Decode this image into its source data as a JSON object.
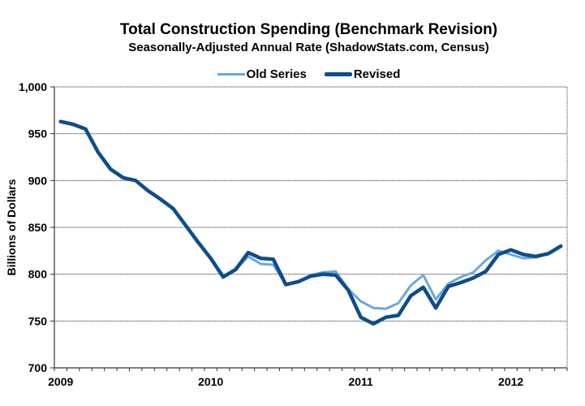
{
  "chart_data": {
    "type": "line",
    "title": "Total Construction Spending (Benchmark Revision)",
    "subtitle": "Seasonally-Adjusted Annual Rate (ShadowStats.com, Census)",
    "xlabel": "",
    "ylabel": "Billions of Dollars",
    "ylim": [
      700,
      1000
    ],
    "yticks": [
      700,
      750,
      800,
      850,
      900,
      950,
      1000
    ],
    "ytick_labels": [
      "700",
      "750",
      "800",
      "850",
      "900",
      "950",
      "1,000"
    ],
    "x_start": "2009-01",
    "x_months": 41,
    "xtick_labels": [
      {
        "label": "2009",
        "month_index": 0
      },
      {
        "label": "2010",
        "month_index": 12
      },
      {
        "label": "2011",
        "month_index": 24
      },
      {
        "label": "2012",
        "month_index": 36
      }
    ],
    "grid": "horizontal",
    "legend_position": "top-center",
    "series": [
      {
        "name": "Old Series",
        "color": "#6aa8e0",
        "values": [
          963,
          960,
          955,
          930,
          912,
          903,
          900,
          889,
          880,
          870,
          852,
          834,
          817,
          797,
          805,
          819,
          811,
          810,
          789,
          792,
          799,
          802,
          803,
          784,
          771,
          764,
          763,
          769,
          788,
          799,
          773,
          790,
          797,
          802,
          815,
          825,
          821,
          817,
          818,
          822
        ]
      },
      {
        "name": "Revised",
        "color": "#0f4c8a",
        "values": [
          963,
          960,
          955,
          930,
          912,
          903,
          900,
          889,
          880,
          870,
          852,
          834,
          817,
          797,
          805,
          823,
          817,
          816,
          789,
          792,
          798,
          800,
          799,
          783,
          754,
          747,
          754,
          756,
          777,
          786,
          764,
          787,
          791,
          796,
          803,
          821,
          826,
          821,
          819,
          822,
          830
        ]
      }
    ]
  }
}
